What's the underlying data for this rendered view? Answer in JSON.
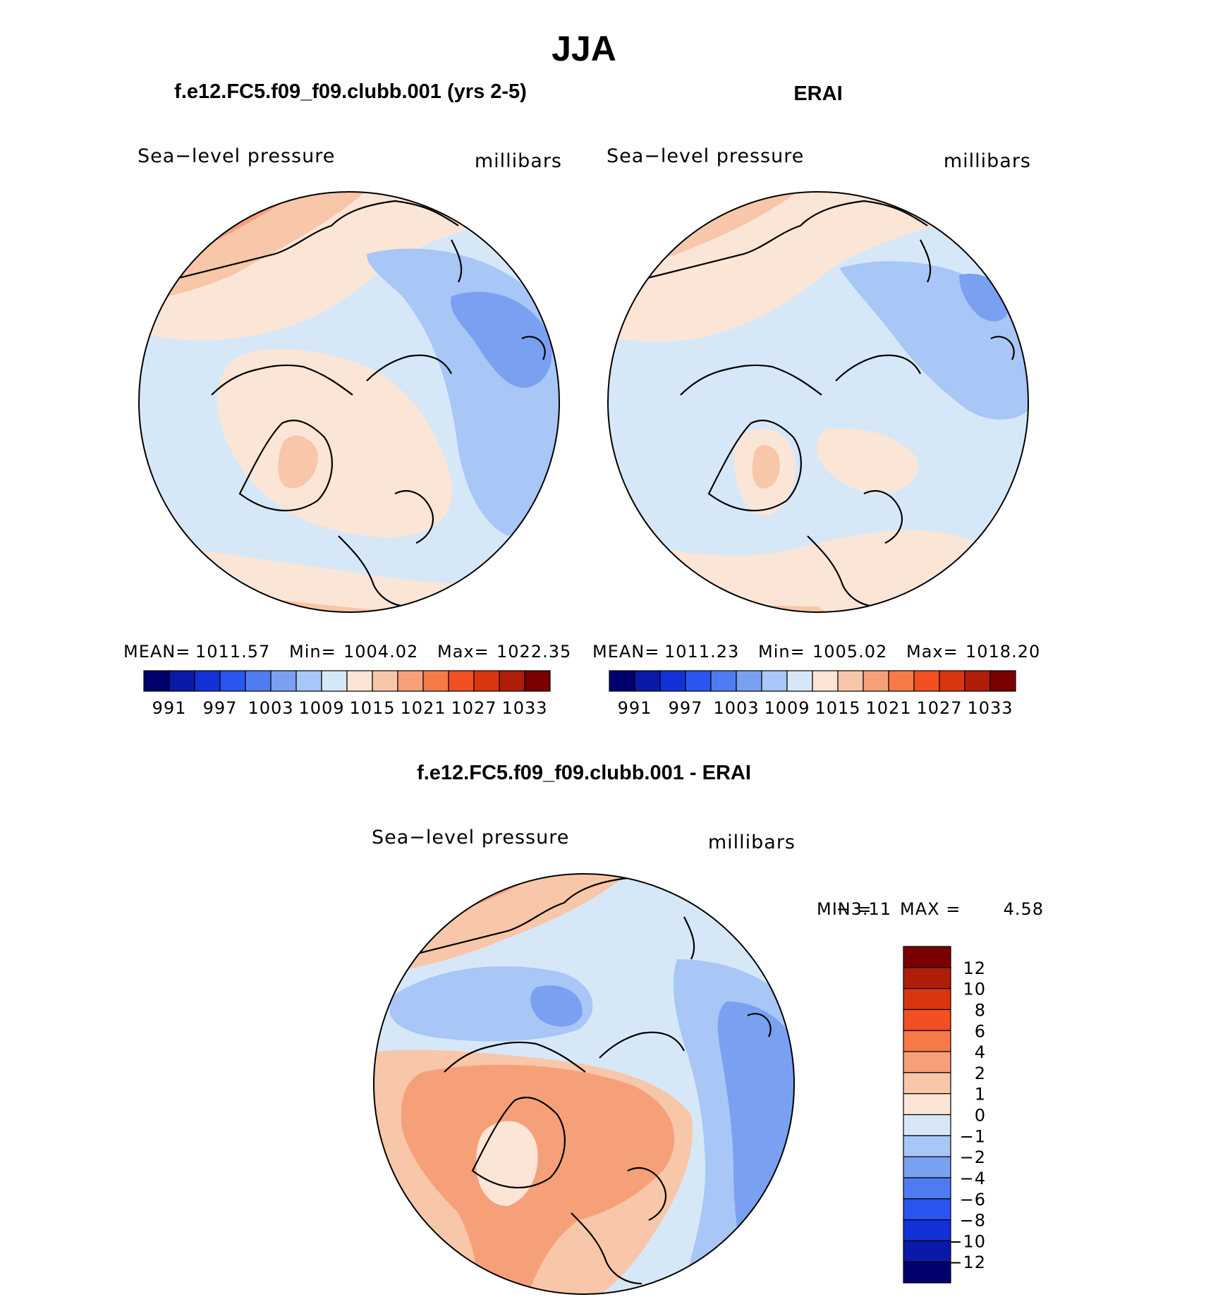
{
  "figure": {
    "season": "JJA",
    "colors": {
      "ocean_base": "#d6e8f8",
      "coastline": "#000000"
    }
  },
  "chart_data": [
    {
      "type": "heatmap",
      "projection": "north-polar-stereographic",
      "title": "f.e12.FC5.f09_f09.clubb.001 (yrs 2-5)",
      "variable_label": "Sea−level pressure",
      "units_label": "millibars",
      "stats": {
        "mean_label": "MEAN=",
        "mean": "1011.57",
        "min_label": "Min=",
        "min": "1004.02",
        "max_label": "Max=",
        "max": "1022.35"
      },
      "colorbar": {
        "orientation": "horizontal",
        "colors": [
          "#00006e",
          "#0a1aa8",
          "#1232d8",
          "#2a55f0",
          "#4f7cf0",
          "#7aa0f2",
          "#a8c6f6",
          "#d6e8f8",
          "#fbe5d6",
          "#f8c6a8",
          "#f6a07a",
          "#f57a48",
          "#f24f22",
          "#db3510",
          "#b01d08",
          "#7a0000"
        ],
        "tick_labels": [
          "991",
          "997",
          "1003",
          "1009",
          "1015",
          "1021",
          "1027",
          "1033"
        ]
      }
    },
    {
      "type": "heatmap",
      "projection": "north-polar-stereographic",
      "title": "ERAI",
      "variable_label": "Sea−level pressure",
      "units_label": "millibars",
      "stats": {
        "mean_label": "MEAN=",
        "mean": "1011.23",
        "min_label": "Min=",
        "min": "1005.02",
        "max_label": "Max=",
        "max": "1018.20"
      },
      "colorbar": {
        "orientation": "horizontal",
        "colors": [
          "#00006e",
          "#0a1aa8",
          "#1232d8",
          "#2a55f0",
          "#4f7cf0",
          "#7aa0f2",
          "#a8c6f6",
          "#d6e8f8",
          "#fbe5d6",
          "#f8c6a8",
          "#f6a07a",
          "#f57a48",
          "#f24f22",
          "#db3510",
          "#b01d08",
          "#7a0000"
        ],
        "tick_labels": [
          "991",
          "997",
          "1003",
          "1009",
          "1015",
          "1021",
          "1027",
          "1033"
        ]
      }
    },
    {
      "type": "heatmap",
      "projection": "north-polar-stereographic",
      "title": "f.e12.FC5.f09_f09.clubb.001 - ERAI",
      "variable_label": "Sea−level pressure",
      "units_label": "millibars",
      "stats": {
        "min_label": "MIN =",
        "min": "−3.11",
        "max_label": "MAX =",
        "max": "4.58"
      },
      "colorbar": {
        "orientation": "vertical",
        "colors": [
          "#7a0000",
          "#b01d08",
          "#db3510",
          "#f24f22",
          "#f57a48",
          "#f6a07a",
          "#f8c6a8",
          "#fbe5d6",
          "#d6e8f8",
          "#a8c6f6",
          "#7aa0f2",
          "#4f7cf0",
          "#2a55f0",
          "#1232d8",
          "#0a1aa8",
          "#00006e"
        ],
        "tick_labels": [
          "12",
          "10",
          "8",
          "6",
          "4",
          "2",
          "1",
          "0",
          "−1",
          "−2",
          "−4",
          "−6",
          "−8",
          "−10",
          "−12"
        ]
      }
    }
  ]
}
